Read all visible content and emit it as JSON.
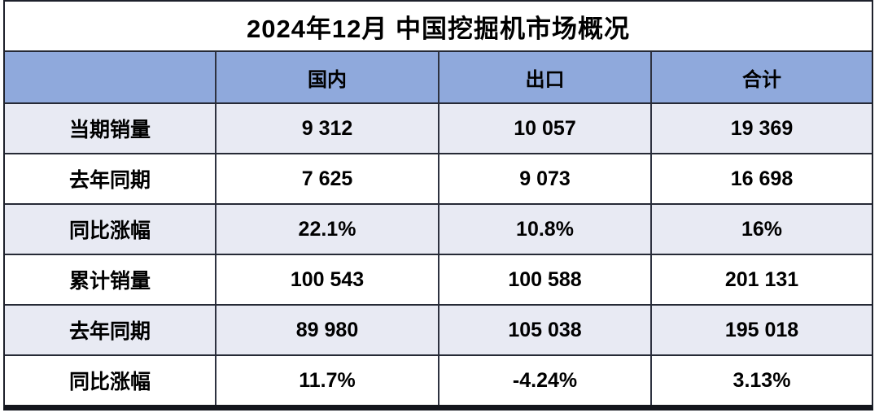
{
  "title": "2024年12月 中国挖掘机市场概况",
  "table": {
    "columns": [
      "",
      "国内",
      "出口",
      "合计"
    ],
    "rows": [
      {
        "label": "当期销量",
        "values": [
          "9 312",
          "10 057",
          "19 369"
        ]
      },
      {
        "label": "去年同期",
        "values": [
          "7 625",
          "9 073",
          "16 698"
        ]
      },
      {
        "label": "同比涨幅",
        "values": [
          "22.1%",
          "10.8%",
          "16%"
        ]
      },
      {
        "label": "累计销量",
        "values": [
          "100 543",
          "100 588",
          "201 131"
        ]
      },
      {
        "label": "去年同期",
        "values": [
          "89 980",
          "105 038",
          "195 018"
        ]
      },
      {
        "label": "同比涨幅",
        "values": [
          "11.7%",
          "-4.24%",
          "3.13%"
        ]
      }
    ]
  },
  "colors": {
    "header_bg": "#8FA9DC",
    "alt_row_bg": "#E8EAF3",
    "row_bg": "#FFFFFF",
    "border": "#1D202B",
    "text": "#000000"
  },
  "chart_data": {
    "type": "table",
    "title": "2024年12月 中国挖掘机市场概况",
    "columns": [
      "",
      "国内",
      "出口",
      "合计"
    ],
    "rows": [
      [
        "当期销量",
        "9 312",
        "10 057",
        "19 369"
      ],
      [
        "去年同期",
        "7 625",
        "9 073",
        "16 698"
      ],
      [
        "同比涨幅",
        "22.1%",
        "10.8%",
        "16%"
      ],
      [
        "累计销量",
        "100 543",
        "100 588",
        "201 131"
      ],
      [
        "去年同期",
        "89 980",
        "105 038",
        "195 018"
      ],
      [
        "同比涨幅",
        "11.7%",
        "-4.24%",
        "3.13%"
      ]
    ],
    "series": [
      {
        "name": "国内",
        "current_sales": 9312,
        "last_year_same_period": 7625,
        "yoy_change_pct": 22.1,
        "cumulative_sales": 100543,
        "cumulative_last_year": 89980,
        "cumulative_yoy_change_pct": 11.7
      },
      {
        "name": "出口",
        "current_sales": 10057,
        "last_year_same_period": 9073,
        "yoy_change_pct": 10.8,
        "cumulative_sales": 100588,
        "cumulative_last_year": 105038,
        "cumulative_yoy_change_pct": -4.24
      },
      {
        "name": "合计",
        "current_sales": 19369,
        "last_year_same_period": 16698,
        "yoy_change_pct": 16,
        "cumulative_sales": 201131,
        "cumulative_last_year": 195018,
        "cumulative_yoy_change_pct": 3.13
      }
    ]
  }
}
